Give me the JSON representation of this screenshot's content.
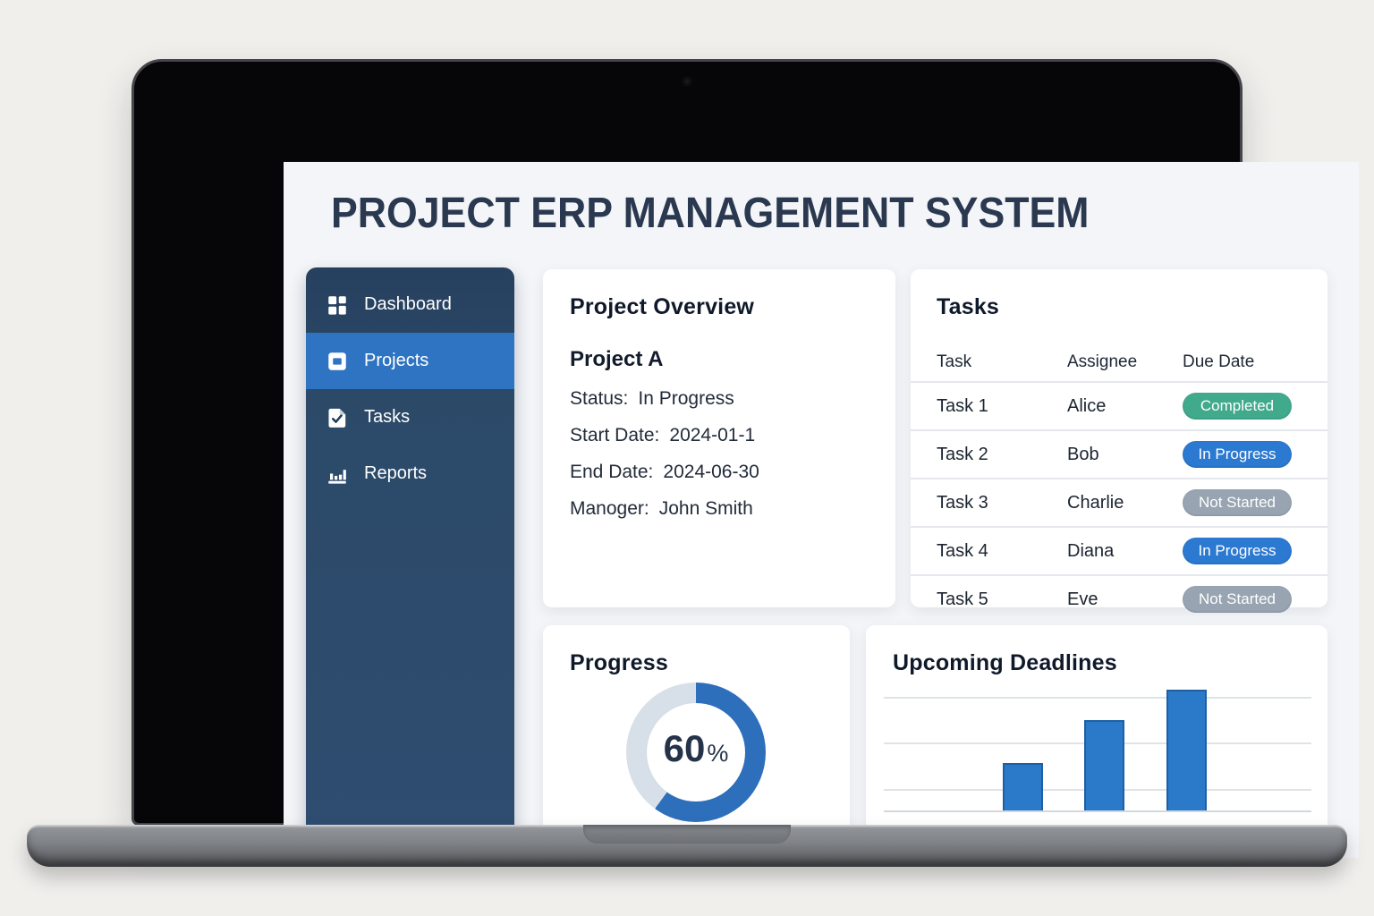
{
  "app": {
    "title": "PROJECT ERP MANAGEMENT SYSTEM"
  },
  "sidebar": {
    "items": [
      {
        "label": "Dashboard",
        "icon": "grid-icon",
        "active": false
      },
      {
        "label": "Projects",
        "icon": "projects-folder-icon",
        "active": true
      },
      {
        "label": "Tasks",
        "icon": "task-check-icon",
        "active": false
      },
      {
        "label": "Reports",
        "icon": "bar-chart-icon",
        "active": false
      }
    ]
  },
  "overview": {
    "heading": "Project Overview",
    "project_name": "Project A",
    "fields": [
      {
        "label": "Status:",
        "value": "In Progress"
      },
      {
        "label": "Start Date:",
        "value": "2024-01-1"
      },
      {
        "label": "End Date:",
        "value": "2024-06-30"
      },
      {
        "label": "Manoger:",
        "value": "John Smith"
      }
    ]
  },
  "tasks": {
    "heading": "Tasks",
    "columns": [
      "Task",
      "Assignee",
      "Due Date"
    ],
    "rows": [
      {
        "task": "Task 1",
        "assignee": "Alice",
        "status": "Completed",
        "status_key": "completed"
      },
      {
        "task": "Task 2",
        "assignee": "Bob",
        "status": "In Progress",
        "status_key": "in_progress"
      },
      {
        "task": "Task 3",
        "assignee": "Charlie",
        "status": "Not Started",
        "status_key": "not_started"
      },
      {
        "task": "Task 4",
        "assignee": "Diana",
        "status": "In Progress",
        "status_key": "in_progress"
      },
      {
        "task": "Task 5",
        "assignee": "Eve",
        "status": "Not Started",
        "status_key": "not_started"
      }
    ],
    "status_colors": {
      "completed": "#41a98c",
      "in_progress": "#2b79d0",
      "not_started": "#98a4b1"
    }
  },
  "chart_data": [
    {
      "type": "donut",
      "title": "Progress",
      "value_pct": 60,
      "center_label": "60",
      "center_unit": "%",
      "fill_color": "#2e6fbc",
      "track_color": "#d7e0e9",
      "start_angle_deg": 0,
      "direction": "clockwise",
      "legend_position": "none"
    },
    {
      "type": "bar",
      "title": "Upcoming Deadlines",
      "categories": [
        "bar-1",
        "bar-2",
        "bar-3"
      ],
      "values_pct_of_plot": [
        41,
        78,
        105
      ],
      "axis_note": "no axis tick labels shown; 100 = height of top gridline above baseline",
      "bar_color": "#2b7ac9",
      "bar_edge_color": "#1d5fa3",
      "grid": true,
      "gridline_count": 3,
      "legend_position": "none"
    }
  ],
  "colors": {
    "page_bg": "#f0efec",
    "screen_bg": "#f3f5f8",
    "title_text": "#2b3950",
    "sidebar_bg": "#2e4d70",
    "sidebar_active_bg": "#2f74c2",
    "card_bg": "#ffffff",
    "heading_text": "#10192a",
    "body_text": "#232c3a",
    "table_divider": "#e4e8ed"
  }
}
